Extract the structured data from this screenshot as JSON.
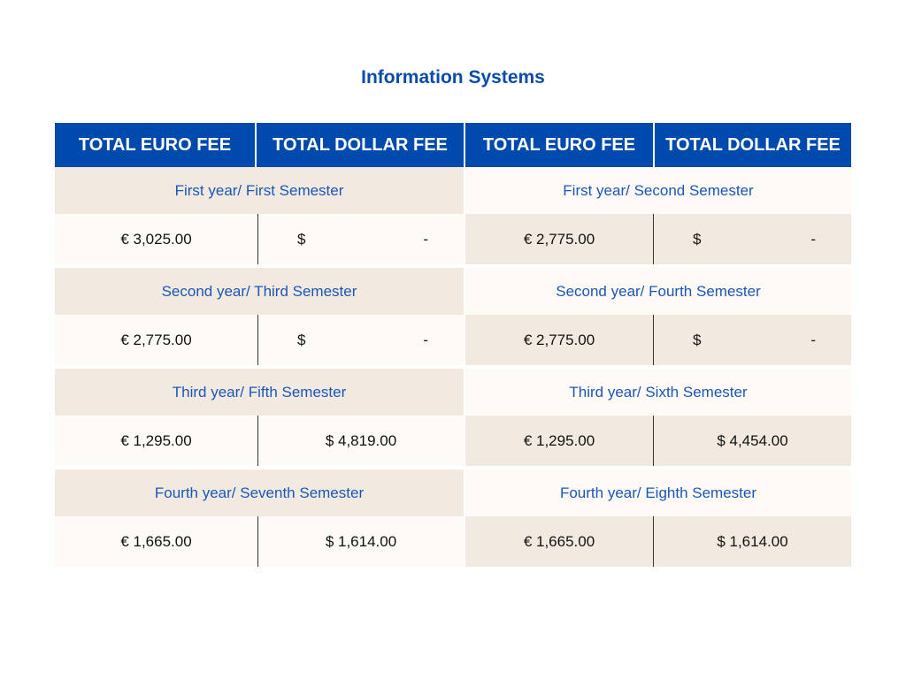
{
  "title": "Information Systems",
  "headers": [
    "TOTAL EURO FEE",
    "TOTAL DOLLAR FEE",
    "TOTAL EURO FEE",
    "TOTAL DOLLAR FEE"
  ],
  "currency_symbol_dollar": "$",
  "colors": {
    "header_bg": "#004aad",
    "title": "#0a4bab",
    "semester_text": "#1a56b8",
    "beige": "#f2eae0",
    "cream": "#fefbf6"
  },
  "rows": [
    {
      "left": {
        "semester": "First year/ First Semester",
        "euro_fee": "€ 3,025.00",
        "dollar_fee": "-"
      },
      "right": {
        "semester": "First year/ Second Semester",
        "euro_fee": "€ 2,775.00",
        "dollar_fee": "-"
      }
    },
    {
      "left": {
        "semester": "Second year/ Third Semester",
        "euro_fee": "€ 2,775.00",
        "dollar_fee": "-"
      },
      "right": {
        "semester": "Second year/ Fourth Semester",
        "euro_fee": "€ 2,775.00",
        "dollar_fee": "-"
      }
    },
    {
      "left": {
        "semester": "Third year/ Fifth Semester",
        "euro_fee": "€ 1,295.00",
        "dollar_fee": "$ 4,819.00"
      },
      "right": {
        "semester": "Third year/ Sixth Semester",
        "euro_fee": "€ 1,295.00",
        "dollar_fee": "$ 4,454.00"
      }
    },
    {
      "left": {
        "semester": "Fourth year/ Seventh Semester",
        "euro_fee": "€  1,665.00",
        "dollar_fee": "$ 1,614.00"
      },
      "right": {
        "semester": "Fourth year/ Eighth Semester",
        "euro_fee": "€ 1,665.00",
        "dollar_fee": "$ 1,614.00"
      }
    }
  ]
}
